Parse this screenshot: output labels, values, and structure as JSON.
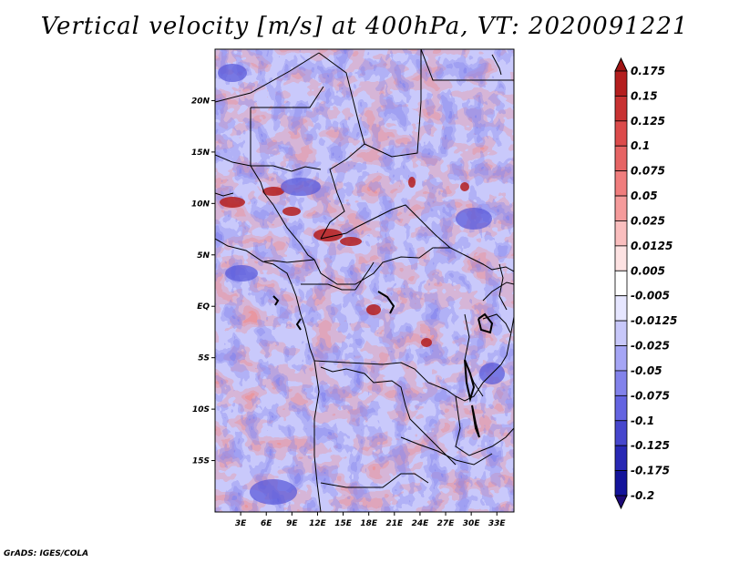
{
  "title": "Vertical velocity [m/s] at 400hPa, VT: 2020091221",
  "credit": "GrADS: IGES/COLA",
  "map": {
    "lon_range": [
      0,
      35
    ],
    "lat_range": [
      -20,
      25
    ],
    "lat_ticks": [
      {
        "value": 20,
        "label": "20N"
      },
      {
        "value": 15,
        "label": "15N"
      },
      {
        "value": 10,
        "label": "10N"
      },
      {
        "value": 5,
        "label": "5N"
      },
      {
        "value": 0,
        "label": "EQ"
      },
      {
        "value": -5,
        "label": "5S"
      },
      {
        "value": -10,
        "label": "10S"
      },
      {
        "value": -15,
        "label": "15S"
      }
    ],
    "lon_ticks": [
      {
        "value": 3,
        "label": "3E"
      },
      {
        "value": 6,
        "label": "6E"
      },
      {
        "value": 9,
        "label": "9E"
      },
      {
        "value": 12,
        "label": "12E"
      },
      {
        "value": 15,
        "label": "15E"
      },
      {
        "value": 18,
        "label": "18E"
      },
      {
        "value": 21,
        "label": "21E"
      },
      {
        "value": 24,
        "label": "24E"
      },
      {
        "value": 27,
        "label": "27E"
      },
      {
        "value": 30,
        "label": "30E"
      },
      {
        "value": 33,
        "label": "33E"
      }
    ]
  },
  "colorbar": {
    "levels": [
      "0.175",
      "0.15",
      "0.125",
      "0.1",
      "0.075",
      "0.05",
      "0.025",
      "0.0125",
      "0.005",
      "-0.005",
      "-0.0125",
      "-0.025",
      "-0.05",
      "-0.075",
      "-0.1",
      "-0.125",
      "-0.175",
      "-0.2"
    ],
    "colors": [
      "#a01414",
      "#b41e1e",
      "#c83232",
      "#dc4b4b",
      "#e66464",
      "#f07d7d",
      "#f59b9b",
      "#fabebe",
      "#fde2e2",
      "#ffffff",
      "#e6e6ff",
      "#c8c8fa",
      "#a5a5f5",
      "#8282eb",
      "#6464e1",
      "#4646cd",
      "#2828b4",
      "#14149b",
      "#1e0a78"
    ]
  }
}
